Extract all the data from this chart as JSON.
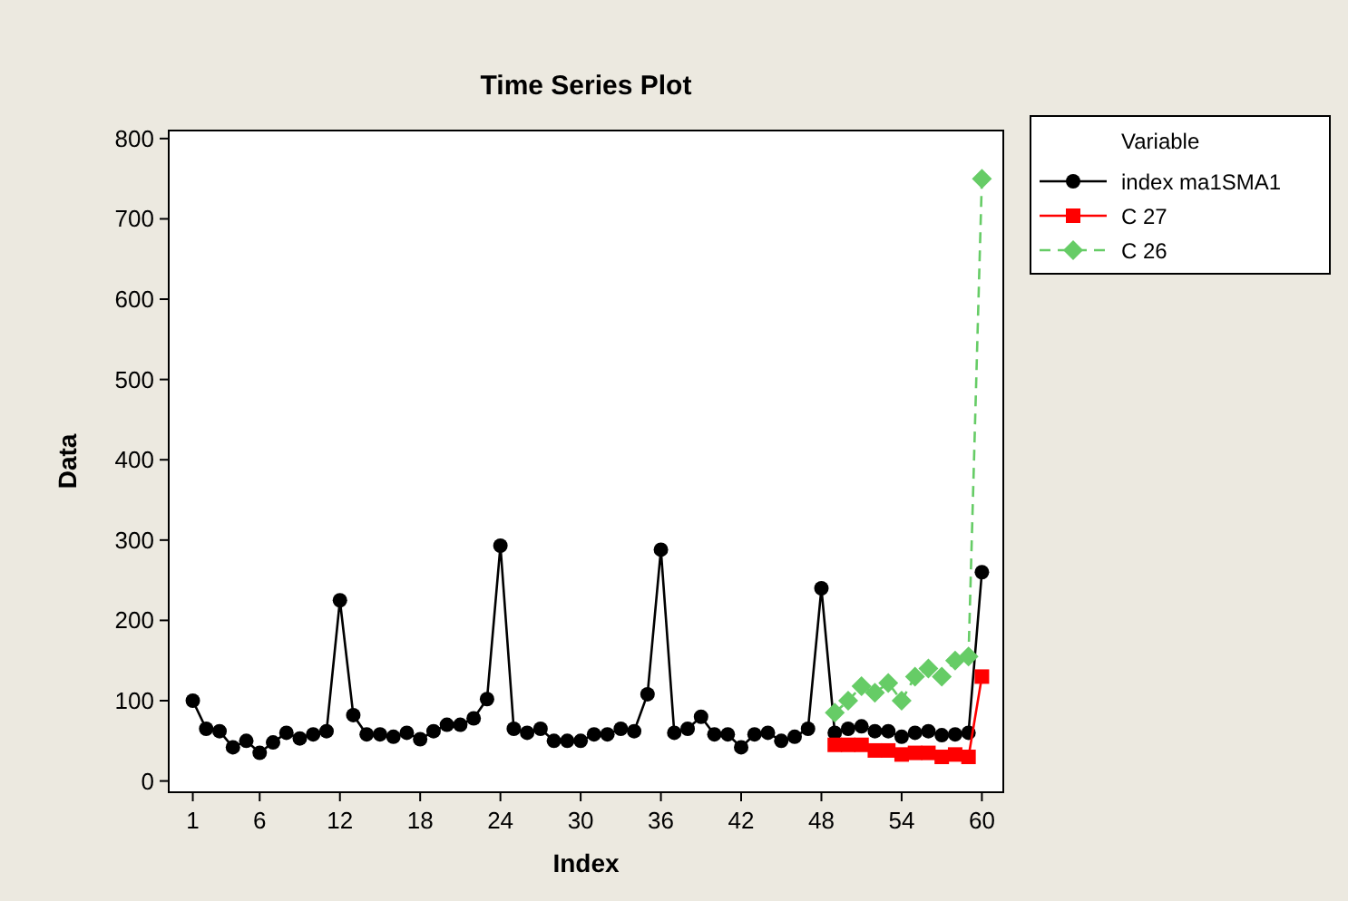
{
  "chart_data": {
    "type": "line",
    "title": "Time Series Plot",
    "xlabel": "Index",
    "ylabel": "Data",
    "legend_title": "Variable",
    "legend": "right",
    "grid": false,
    "xlim": [
      -0.8,
      61.6
    ],
    "xticks": [
      1,
      6,
      12,
      18,
      24,
      30,
      36,
      42,
      48,
      54,
      60
    ],
    "ylim": [
      -14,
      810
    ],
    "yticks": [
      0,
      100,
      200,
      300,
      400,
      500,
      600,
      700,
      800
    ],
    "series": [
      {
        "name": "index ma1SMA1",
        "color": "#000000",
        "marker": "circle",
        "line_style": "solid",
        "x": [
          1,
          2,
          3,
          4,
          5,
          6,
          7,
          8,
          9,
          10,
          11,
          12,
          13,
          14,
          15,
          16,
          17,
          18,
          19,
          20,
          21,
          22,
          23,
          24,
          25,
          26,
          27,
          28,
          29,
          30,
          31,
          32,
          33,
          34,
          35,
          36,
          37,
          38,
          39,
          40,
          41,
          42,
          43,
          44,
          45,
          46,
          47,
          48,
          49,
          50,
          51,
          52,
          53,
          54,
          55,
          56,
          57,
          58,
          59,
          60
        ],
        "values": [
          100,
          65,
          62,
          42,
          50,
          35,
          48,
          60,
          53,
          58,
          62,
          225,
          82,
          58,
          58,
          55,
          60,
          52,
          62,
          70,
          70,
          78,
          102,
          293,
          65,
          60,
          65,
          50,
          50,
          50,
          58,
          58,
          65,
          62,
          108,
          288,
          60,
          65,
          80,
          58,
          58,
          42,
          58,
          60,
          50,
          55,
          65,
          240,
          60,
          65,
          68,
          62,
          62,
          55,
          60,
          62,
          57,
          58,
          60,
          260
        ]
      },
      {
        "name": "C 27",
        "color": "#ff0000",
        "marker": "square",
        "line_style": "solid",
        "x": [
          49,
          50,
          51,
          52,
          53,
          54,
          55,
          56,
          57,
          58,
          59,
          60
        ],
        "values": [
          45,
          45,
          45,
          38,
          38,
          33,
          35,
          35,
          30,
          33,
          30,
          130
        ]
      },
      {
        "name": "C 26",
        "color": "#66cc66",
        "marker": "diamond",
        "line_style": "dashed",
        "x": [
          49,
          50,
          51,
          52,
          53,
          54,
          55,
          56,
          57,
          58,
          59,
          60
        ],
        "values": [
          85,
          100,
          118,
          110,
          122,
          100,
          130,
          140,
          130,
          150,
          155,
          750
        ]
      }
    ]
  }
}
